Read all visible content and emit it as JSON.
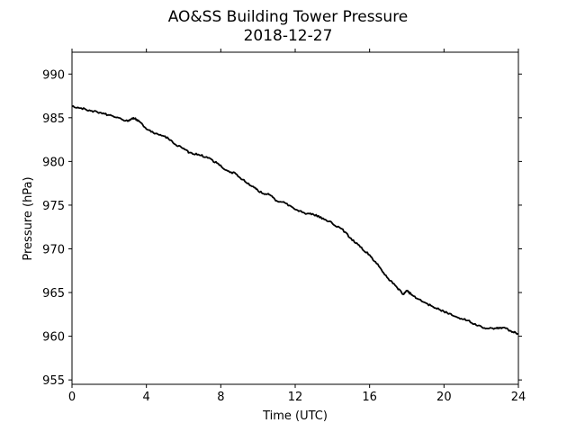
{
  "chart_data": {
    "type": "line",
    "title": "AO&SS Building Tower Pressure",
    "subtitle": "2018-12-27",
    "xlabel": "Time (UTC)",
    "ylabel": "Pressure (hPa)",
    "xlim": [
      0,
      24
    ],
    "ylim": [
      954.5,
      992.5
    ],
    "xticks": [
      0,
      4,
      8,
      12,
      16,
      20,
      24
    ],
    "yticks": [
      955,
      960,
      965,
      970,
      975,
      980,
      985,
      990
    ],
    "grid": false,
    "line_color": "#000000",
    "series": [
      {
        "x": [
          0,
          0.5,
          1,
          1.5,
          2,
          2.5,
          3,
          3.3,
          3.6,
          4,
          4.5,
          5,
          5.5,
          6,
          6.3,
          6.8,
          7.3,
          7.8,
          8.3,
          8.8,
          9.3,
          9.8,
          10.2,
          10.6,
          11,
          11.5,
          12,
          12.5,
          13,
          13.5,
          14,
          14.5,
          15,
          15.5,
          16,
          16.5,
          17,
          17.5,
          17.8,
          18,
          18.3,
          18.8,
          19.3,
          19.8,
          20.3,
          20.8,
          21.3,
          21.8,
          22.3,
          22.8,
          23.2,
          23.6,
          24
        ],
        "values": [
          986.3,
          986.1,
          985.8,
          985.6,
          985.3,
          985.0,
          984.6,
          985.0,
          984.6,
          983.7,
          983.2,
          982.9,
          982.0,
          981.5,
          981.0,
          980.8,
          980.4,
          979.8,
          979.0,
          978.6,
          977.7,
          977.0,
          976.4,
          976.2,
          975.5,
          975.2,
          974.5,
          974.1,
          973.9,
          973.5,
          972.9,
          972.3,
          971.2,
          970.2,
          969.3,
          968.0,
          966.6,
          965.5,
          964.8,
          965.2,
          964.7,
          964.0,
          963.5,
          963.0,
          962.6,
          962.1,
          961.8,
          961.2,
          960.9,
          960.9,
          961.0,
          960.6,
          960.3
        ]
      }
    ]
  }
}
